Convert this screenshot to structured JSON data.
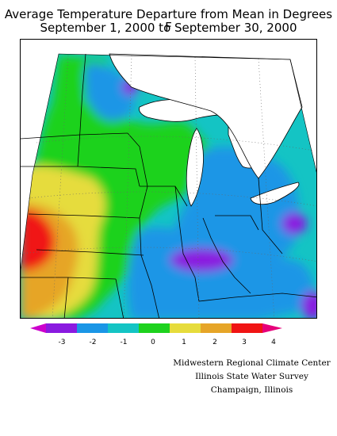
{
  "title": {
    "line1": "Average Temperature Departure from Mean in Degrees F",
    "line2": "September 1, 2000 to September 30, 2000"
  },
  "legend": {
    "labels": [
      "-3",
      "-2",
      "-1",
      "0",
      "1",
      "2",
      "3",
      "4"
    ],
    "colors": {
      "below_-3": "#cc00cc",
      "-3_-2": "#8a1ae0",
      "-2_-1": "#1a96e6",
      "-1_0": "#14c4c4",
      "0_1": "#1ed21e",
      "1_2": "#e6dc3c",
      "2_3": "#e6a528",
      "3_4": "#f01414",
      "above_4": "#e6007a"
    }
  },
  "credit": {
    "line1": "Midwestern Regional Climate Center",
    "line2": "Illinois State Water Survey",
    "line3": "Champaign, Illinois"
  }
}
